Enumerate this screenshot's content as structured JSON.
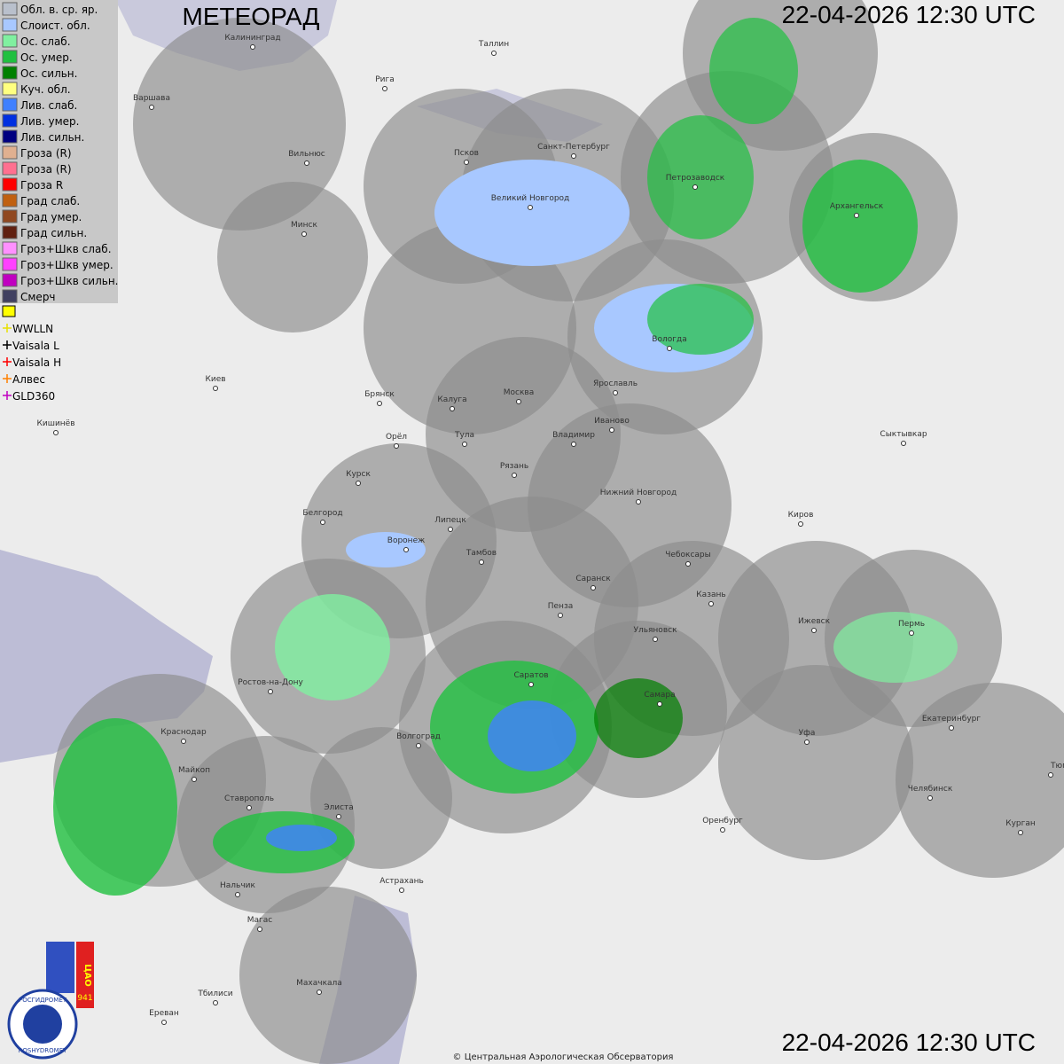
{
  "header": {
    "title": "МЕТЕОРАД",
    "timestamp_top": "22-04-2026  12:30 UTC",
    "timestamp_bottom": "22-04-2026  12:30 UTC"
  },
  "legend": {
    "items": [
      {
        "label": "Обл. в. ср. яр.",
        "color": "#b9c0cc"
      },
      {
        "label": "Слоист. обл.",
        "color": "#a8c8ff"
      },
      {
        "label": "Ос. слаб.",
        "color": "#80f0a0"
      },
      {
        "label": "Ос. умер.",
        "color": "#20c040"
      },
      {
        "label": "Ос. сильн.",
        "color": "#008000"
      },
      {
        "label": "Куч. обл.",
        "color": "#ffff80"
      },
      {
        "label": "Лив. слаб.",
        "color": "#4080ff"
      },
      {
        "label": "Лив. умер.",
        "color": "#0030e0"
      },
      {
        "label": "Лив. сильн.",
        "color": "#000080"
      },
      {
        "label": "Гроза (R)",
        "color": "#e0b090"
      },
      {
        "label": "Гроза (R)",
        "color": "#ff7090"
      },
      {
        "label": "Гроза R",
        "color": "#ff0000"
      },
      {
        "label": "Град слаб.",
        "color": "#c06010"
      },
      {
        "label": "Град умер.",
        "color": "#904820"
      },
      {
        "label": "Град сильн.",
        "color": "#602010"
      },
      {
        "label": "Гроз+Шкв слаб.",
        "color": "#ff90ff"
      },
      {
        "label": "Гроз+Шкв умер.",
        "color": "#ff40ff"
      },
      {
        "label": "Гроз+Шкв сильн.",
        "color": "#c000c0"
      },
      {
        "label": "Смерч",
        "color": "#404060"
      }
    ],
    "lightning": [
      {
        "label": "WWLLN",
        "color": "#e8e000"
      },
      {
        "label": "Vaisala L",
        "color": "#000000"
      },
      {
        "label": "Vaisala H",
        "color": "#ff0000"
      },
      {
        "label": "Алвес",
        "color": "#ff8000"
      },
      {
        "label": "GLD360",
        "color": "#c000c0"
      }
    ]
  },
  "cities": [
    "Калининград",
    "Таллин",
    "Рига",
    "Варшава",
    "Вильнюс",
    "Псков",
    "Санкт-Петербург",
    "Петрозаводск",
    "Архангельск",
    "Великий Новгород",
    "Минск",
    "Вологда",
    "Ярославль",
    "Киев",
    "Брянск",
    "Калуга",
    "Москва",
    "Иваново",
    "Кишинёв",
    "Орёл",
    "Тула",
    "Владимир",
    "Сыктывкар",
    "Рязань",
    "Курск",
    "Нижний Новгород",
    "Киров",
    "Белгород",
    "Липецк",
    "Воронеж",
    "Тамбов",
    "Чебоксары",
    "Саранск",
    "Пенза",
    "Казань",
    "Ижевск",
    "Ульяновск",
    "Пермь",
    "Ростов-на-Дону",
    "Саратов",
    "Самара",
    "Екатеринбург",
    "Волгоград",
    "Краснодар",
    "Уфа",
    "Майкоп",
    "Тюмень",
    "Челябинск",
    "Ставрополь",
    "Элиста",
    "Оренбург",
    "Курган",
    "Нальчик",
    "Астрахань",
    "Магас",
    "Махачкала",
    "Тбилиси",
    "Ереван"
  ],
  "logo": {
    "org_ru": "РОСГИДРОМЕТ",
    "org_en": "ROSHYDROMET",
    "cao": "ЦАО",
    "year": "941"
  },
  "footer": {
    "copyright": "© Центральная Аэрологическая Обсерватория"
  }
}
